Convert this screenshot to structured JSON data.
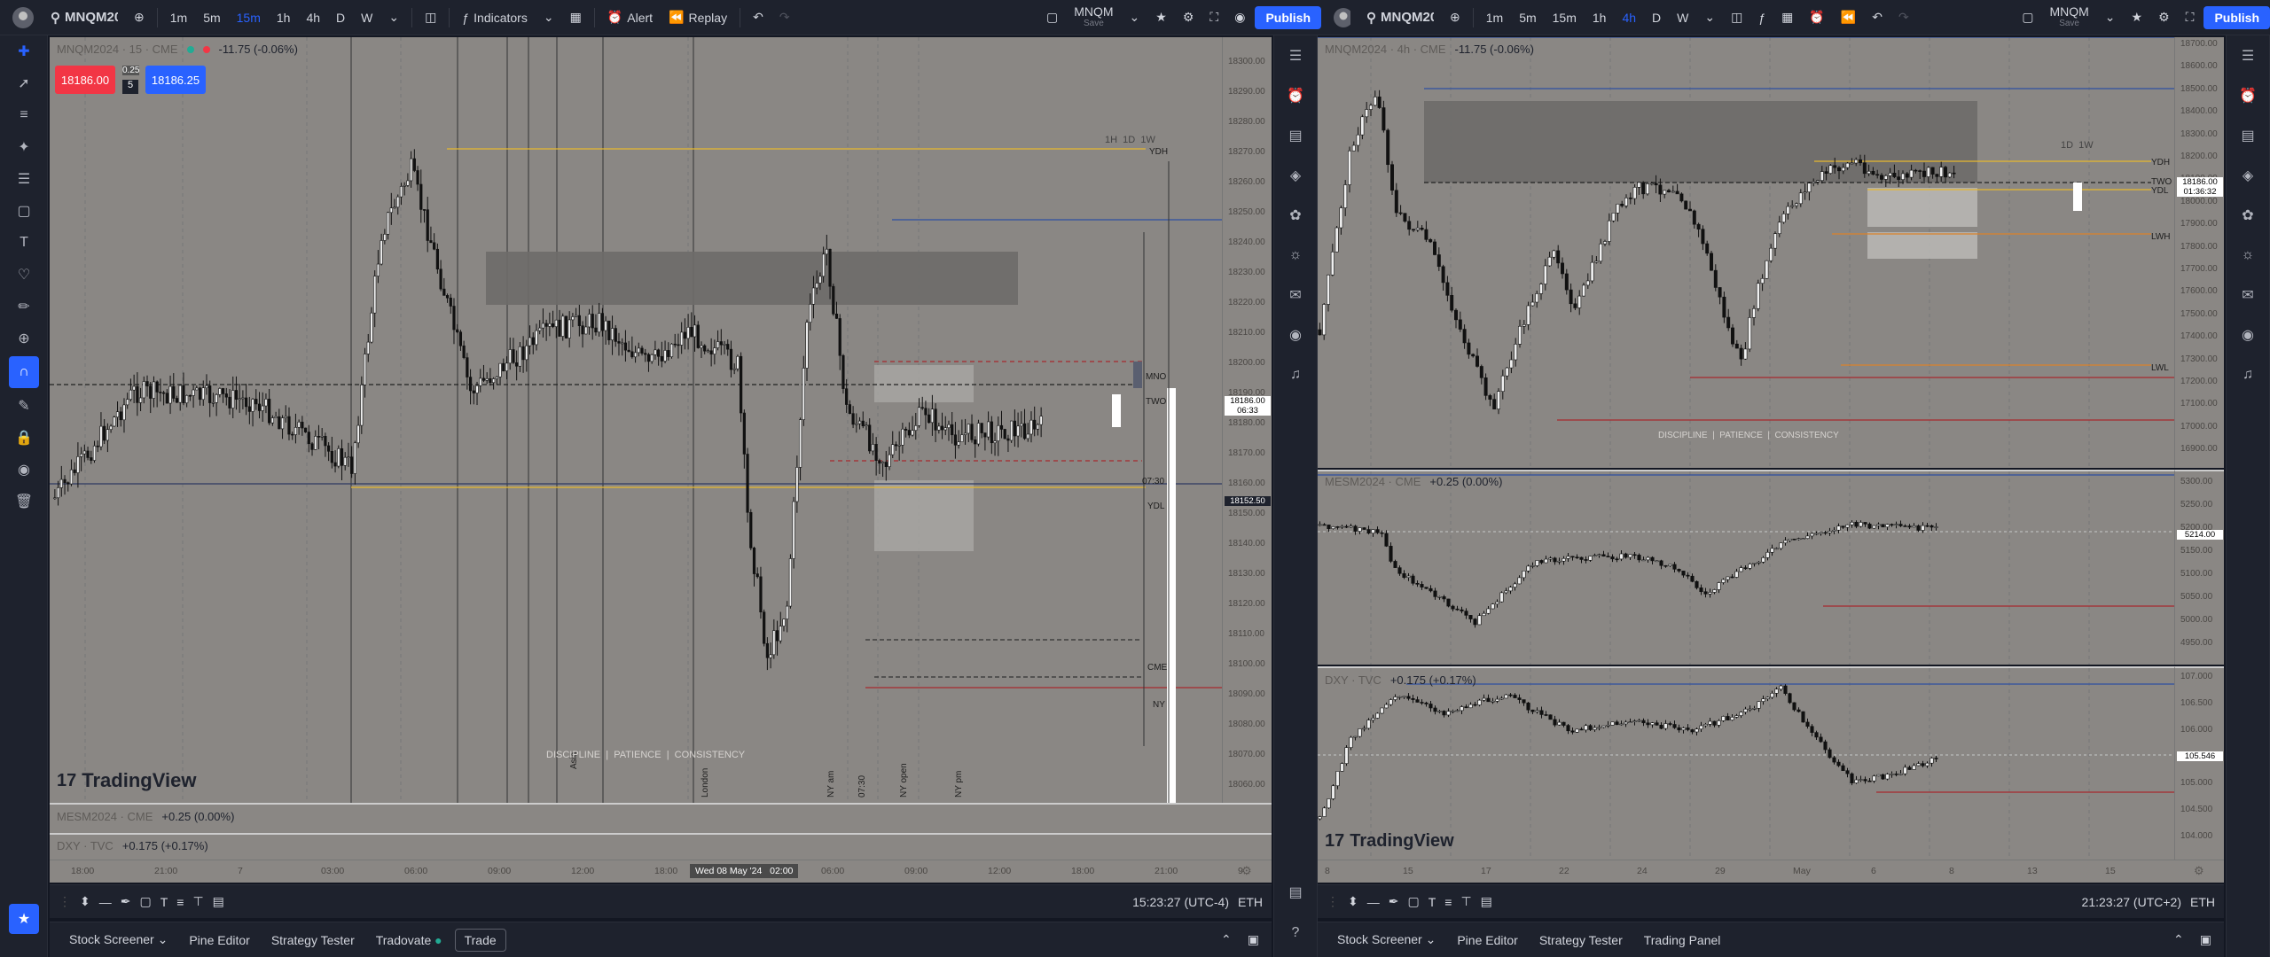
{
  "left": {
    "toolbar": {
      "symbol": "MNQM2024",
      "intervals": [
        "1m",
        "5m",
        "15m",
        "1h",
        "4h",
        "D",
        "W"
      ],
      "active_interval": "15m",
      "indicators": "Indicators",
      "alert": "Alert",
      "replay": "Replay",
      "layout_name": "MNQM",
      "layout_sub": "Save",
      "publish": "Publish"
    },
    "legend": {
      "title": "MNQM2024 · 15 · CME",
      "change": "-11.75 (-0.06%)"
    },
    "order": {
      "sell": "18186.00",
      "spread": "0.25",
      "qty": "5",
      "buy": "18186.25"
    },
    "timeframes": "1H  1D  1W",
    "level_labels": {
      "ydh": "YDH",
      "mno": "MNO",
      "two": "TWO",
      "l0730": "07:30",
      "ydl": "YDL",
      "cme": "CME",
      "ny": "NY"
    },
    "session_labels": [
      "Asia",
      "London",
      "NY am",
      "07:30",
      "NY open",
      "NY pm"
    ],
    "price_ticks": [
      "18300.00",
      "18290.00",
      "18280.00",
      "18270.00",
      "18260.00",
      "18250.00",
      "18240.00",
      "18230.00",
      "18220.00",
      "18210.00",
      "18200.00",
      "18190.00",
      "18180.00",
      "18170.00",
      "18160.00",
      "18150.00",
      "18140.00",
      "18130.00",
      "18120.00",
      "18110.00",
      "18100.00",
      "18090.00",
      "18080.00",
      "18070.00",
      "18060.00"
    ],
    "price_badge": {
      "price": "18186.00",
      "countdown": "06:33"
    },
    "ydl_badge": "18152.50",
    "time_ticks": [
      "18:00",
      "21:00",
      "7",
      "03:00",
      "06:00",
      "09:00",
      "12:00",
      "18:00",
      "21:00",
      "06:00",
      "09:00",
      "12:00",
      "18:00",
      "21:00",
      "9"
    ],
    "cursor_time": "Wed 08 May '24   02:00",
    "discipline": "DISCIPLINE  |  PATIENCE  |  CONSISTENCY",
    "watermark": "TradingView",
    "pane2": {
      "title": "MESM2024 · CME",
      "change": "+0.25 (0.00%)"
    },
    "pane3": {
      "title": "DXY · TVC",
      "change": "+0.175 (+0.17%)"
    },
    "clock": "15:23:27 (UTC-4)",
    "session": "ETH",
    "tabs": [
      "Stock Screener",
      "Pine Editor",
      "Strategy Tester",
      "Tradovate",
      "Trade"
    ]
  },
  "right": {
    "toolbar": {
      "symbol": "MNQM2024",
      "intervals": [
        "1m",
        "5m",
        "15m",
        "1h",
        "4h",
        "D",
        "W"
      ],
      "active_interval": "4h",
      "layout_name": "MNQM",
      "layout_sub": "Save",
      "publish": "Publish"
    },
    "legend": {
      "title": "MNQM2024 · 4h · CME",
      "change": "-11.75 (-0.06%)"
    },
    "timeframes": "1D  1W",
    "level_labels": {
      "ydh": "YDH",
      "two": "TWO",
      "ydl": "YDL",
      "lwh": "LWH",
      "lwl": "LWL"
    },
    "price_ticks": [
      "18700.00",
      "18600.00",
      "18500.00",
      "18400.00",
      "18300.00",
      "18200.00",
      "18100.00",
      "18000.00",
      "17900.00",
      "17800.00",
      "17700.00",
      "17600.00",
      "17500.00",
      "17400.00",
      "17300.00",
      "17200.00",
      "17100.00",
      "17000.00",
      "16900.00"
    ],
    "price_badge": {
      "price": "18186.00",
      "countdown": "01:36:32"
    },
    "pane2": {
      "title": "MESM2024 · CME",
      "change": "+0.25 (0.00%)",
      "ticks": [
        "5300.00",
        "5250.00",
        "5200.00",
        "5150.00",
        "5100.00",
        "5050.00",
        "5000.00",
        "4950.00"
      ],
      "badge": "5214.00"
    },
    "pane3": {
      "title": "DXY · TVC",
      "change": "+0.175 (+0.17%)",
      "ticks": [
        "107.000",
        "106.500",
        "106.000",
        "105.500",
        "105.000",
        "104.500",
        "104.000"
      ],
      "badge": "105.546"
    },
    "time_ticks": [
      "8",
      "15",
      "17",
      "22",
      "24",
      "29",
      "May",
      "6",
      "8",
      "13",
      "15"
    ],
    "discipline": "DISCIPLINE  |  PATIENCE  |  CONSISTENCY",
    "watermark": "TradingView",
    "clock": "21:23:27 (UTC+2)",
    "session": "ETH",
    "tabs": [
      "Stock Screener",
      "Pine Editor",
      "Strategy Tester",
      "Trading Panel"
    ]
  },
  "colors": {
    "accent": "#2962ff",
    "sell": "#f23645",
    "buy": "#2962ff",
    "gold": "#e6b82e",
    "blue": "#2f4fa0",
    "red": "#a6292f",
    "orange": "#d9822b"
  }
}
